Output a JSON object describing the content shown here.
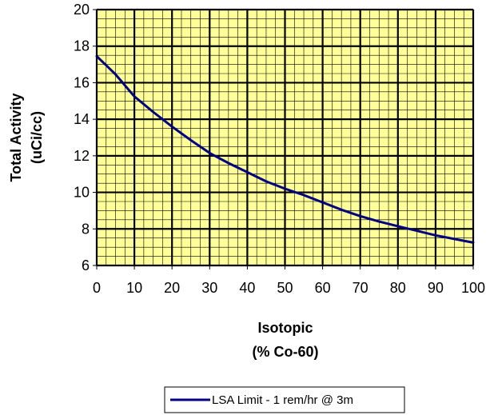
{
  "chart_data": {
    "type": "line",
    "xlabel_lines": [
      "Isotopic",
      "(% Co-60)"
    ],
    "ylabel_lines": [
      "Total Activity",
      "(uCi/cc)"
    ],
    "xlim": [
      0,
      100
    ],
    "ylim": [
      6,
      20
    ],
    "x_ticks": [
      0,
      10,
      20,
      30,
      40,
      50,
      60,
      70,
      80,
      90,
      100
    ],
    "y_ticks": [
      6,
      8,
      10,
      12,
      14,
      16,
      18,
      20
    ],
    "grid": "major and minor",
    "legend_position": "bottom-center",
    "plot_background": "#ffff99",
    "series": [
      {
        "name": "LSA Limit - 1 rem/hr @ 3m",
        "color": "#000080",
        "x": [
          0,
          5,
          10,
          15,
          20,
          25,
          30,
          35,
          40,
          45,
          50,
          55,
          60,
          65,
          70,
          75,
          80,
          85,
          90,
          95,
          100
        ],
        "y": [
          17.45,
          16.45,
          15.25,
          14.4,
          13.6,
          12.85,
          12.15,
          11.6,
          11.1,
          10.6,
          10.2,
          9.85,
          9.45,
          9.05,
          8.7,
          8.4,
          8.15,
          7.9,
          7.65,
          7.45,
          7.25
        ]
      }
    ]
  }
}
